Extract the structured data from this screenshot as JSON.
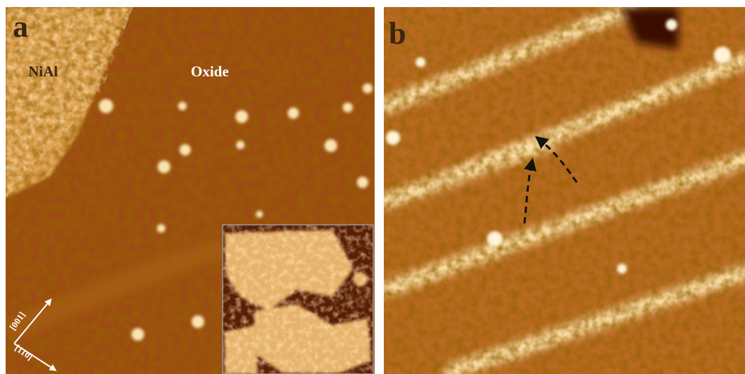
{
  "panels": [
    {
      "label": "a",
      "annotations": [
        "NiAl",
        "Oxide"
      ],
      "directions": [
        "[001]",
        "[1̄10]"
      ]
    },
    {
      "label": "b"
    }
  ]
}
